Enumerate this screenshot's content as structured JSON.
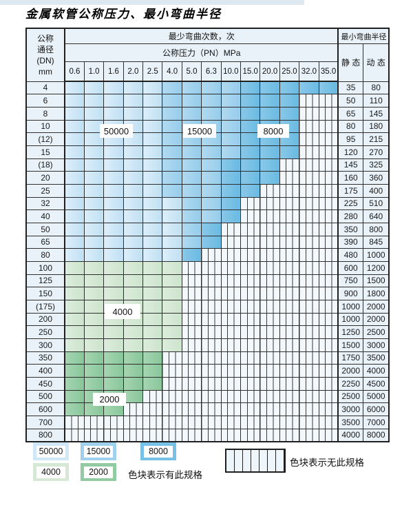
{
  "title": "金属软管公称压力、最小弯曲半径",
  "table": {
    "corner_lines": [
      "公称",
      "通径",
      "(DN)",
      "mm"
    ],
    "bend_cycles_header": "最少弯曲次数，次",
    "pressure_header": "公称压力（PN）MPa",
    "radius_header": "最小弯曲半径",
    "static_header": "静 态",
    "dynamic_header": "动 态",
    "pressure_columns": [
      "0.6",
      "1.0",
      "1.6",
      "2.0",
      "2.5",
      "4.0",
      "5.0",
      "6.3",
      "10.0",
      "15.0",
      "20.0",
      "25.0",
      "32.0",
      "35.0"
    ],
    "zone_codes": {
      "L": "50000",
      "M": "15000",
      "D": "8000",
      "G": "4000",
      "E": "2000",
      "X": "无此规格"
    },
    "rows": [
      {
        "dn": "4",
        "cells": "LLLLLMMMMDDDDD",
        "static": "35",
        "dynamic": "80"
      },
      {
        "dn": "6",
        "cells": "LLLLLMMMMDDDXX",
        "static": "50",
        "dynamic": "110"
      },
      {
        "dn": "8",
        "cells": "LLLLLMMMMDDDXX",
        "static": "65",
        "dynamic": "145"
      },
      {
        "dn": "10",
        "cells": "LLLLLMMMMDDDXX",
        "static": "80",
        "dynamic": "180"
      },
      {
        "dn": "(12)",
        "cells": "LLLLLMMMMDDDXX",
        "static": "95",
        "dynamic": "215"
      },
      {
        "dn": "15",
        "cells": "LLLLLMMMMDDDXX",
        "static": "120",
        "dynamic": "270"
      },
      {
        "dn": "(18)",
        "cells": "LLLLLMMMDDDXXX",
        "static": "145",
        "dynamic": "325"
      },
      {
        "dn": "20",
        "cells": "LLLLLMMMDDDXXX",
        "static": "160",
        "dynamic": "360"
      },
      {
        "dn": "25",
        "cells": "LLLLLMMMDDXXXX",
        "static": "175",
        "dynamic": "400"
      },
      {
        "dn": "32",
        "cells": "LLLLLLMMDXXXXX",
        "static": "225",
        "dynamic": "510"
      },
      {
        "dn": "40",
        "cells": "LLLLLLMMDXXXXX",
        "static": "280",
        "dynamic": "640"
      },
      {
        "dn": "50",
        "cells": "LLLLLLMDXXXXXX",
        "static": "350",
        "dynamic": "800"
      },
      {
        "dn": "65",
        "cells": "LLLLLLMDXXXXXX",
        "static": "390",
        "dynamic": "845"
      },
      {
        "dn": "80",
        "cells": "LLLLLLDXXXXXXX",
        "static": "480",
        "dynamic": "1000"
      },
      {
        "dn": "100",
        "cells": "GGGGGGXXXXXXXX",
        "static": "600",
        "dynamic": "1200"
      },
      {
        "dn": "125",
        "cells": "GGGGGGXXXXXXXX",
        "static": "750",
        "dynamic": "1500"
      },
      {
        "dn": "150",
        "cells": "GGGGGGXXXXXXXX",
        "static": "900",
        "dynamic": "1800"
      },
      {
        "dn": "(175)",
        "cells": "GGGGGGXXXXXXXX",
        "static": "1000",
        "dynamic": "2000"
      },
      {
        "dn": "200",
        "cells": "GGGGGGXXXXXXXX",
        "static": "1000",
        "dynamic": "2000"
      },
      {
        "dn": "250",
        "cells": "GGGGGGXXXXXXXX",
        "static": "1250",
        "dynamic": "2500"
      },
      {
        "dn": "300",
        "cells": "GGGGGGXXXXXXXX",
        "static": "1500",
        "dynamic": "3000"
      },
      {
        "dn": "350",
        "cells": "EEEEEXXXXXXXXX",
        "static": "1750",
        "dynamic": "3500"
      },
      {
        "dn": "400",
        "cells": "EEEEEXXXXXXXXX",
        "static": "2000",
        "dynamic": "4000"
      },
      {
        "dn": "450",
        "cells": "EEEEEXXXXXXXXX",
        "static": "2250",
        "dynamic": "4500"
      },
      {
        "dn": "500",
        "cells": "EEEEXXXXXXXXXX",
        "static": "2500",
        "dynamic": "5000"
      },
      {
        "dn": "600",
        "cells": "EEEXXXXXXXXXXX",
        "static": "3000",
        "dynamic": "6000"
      },
      {
        "dn": "700",
        "cells": "XXXXXXXXXXXXXX",
        "static": "3500",
        "dynamic": "7000"
      },
      {
        "dn": "800",
        "cells": "XXXXXXXXXXXXXX",
        "static": "4000",
        "dynamic": "8000"
      }
    ]
  },
  "overlays": [
    {
      "text": "50000"
    },
    {
      "text": "15000"
    },
    {
      "text": "8000"
    },
    {
      "text": "4000"
    },
    {
      "text": "2000"
    }
  ],
  "legend": {
    "items": [
      {
        "label": "50000",
        "color": "#cfe7f6"
      },
      {
        "label": "15000",
        "color": "#9fd1ee"
      },
      {
        "label": "8000",
        "color": "#77c0e6"
      },
      {
        "label": "4000",
        "color": "#d6e9d6"
      },
      {
        "label": "2000",
        "color": "#92caa1"
      }
    ],
    "has_spec_note": "色块表示有此规格",
    "no_spec_note": "色块表示无此规格"
  },
  "colors": {
    "rating_50000": "#cfe7f6",
    "rating_15000": "#9fd1ee",
    "rating_8000": "#77c0e6",
    "rating_4000": "#d6e9d6",
    "rating_2000": "#92caa1",
    "header_bg": "#e9f2f9",
    "border": "#2e2e2e"
  }
}
